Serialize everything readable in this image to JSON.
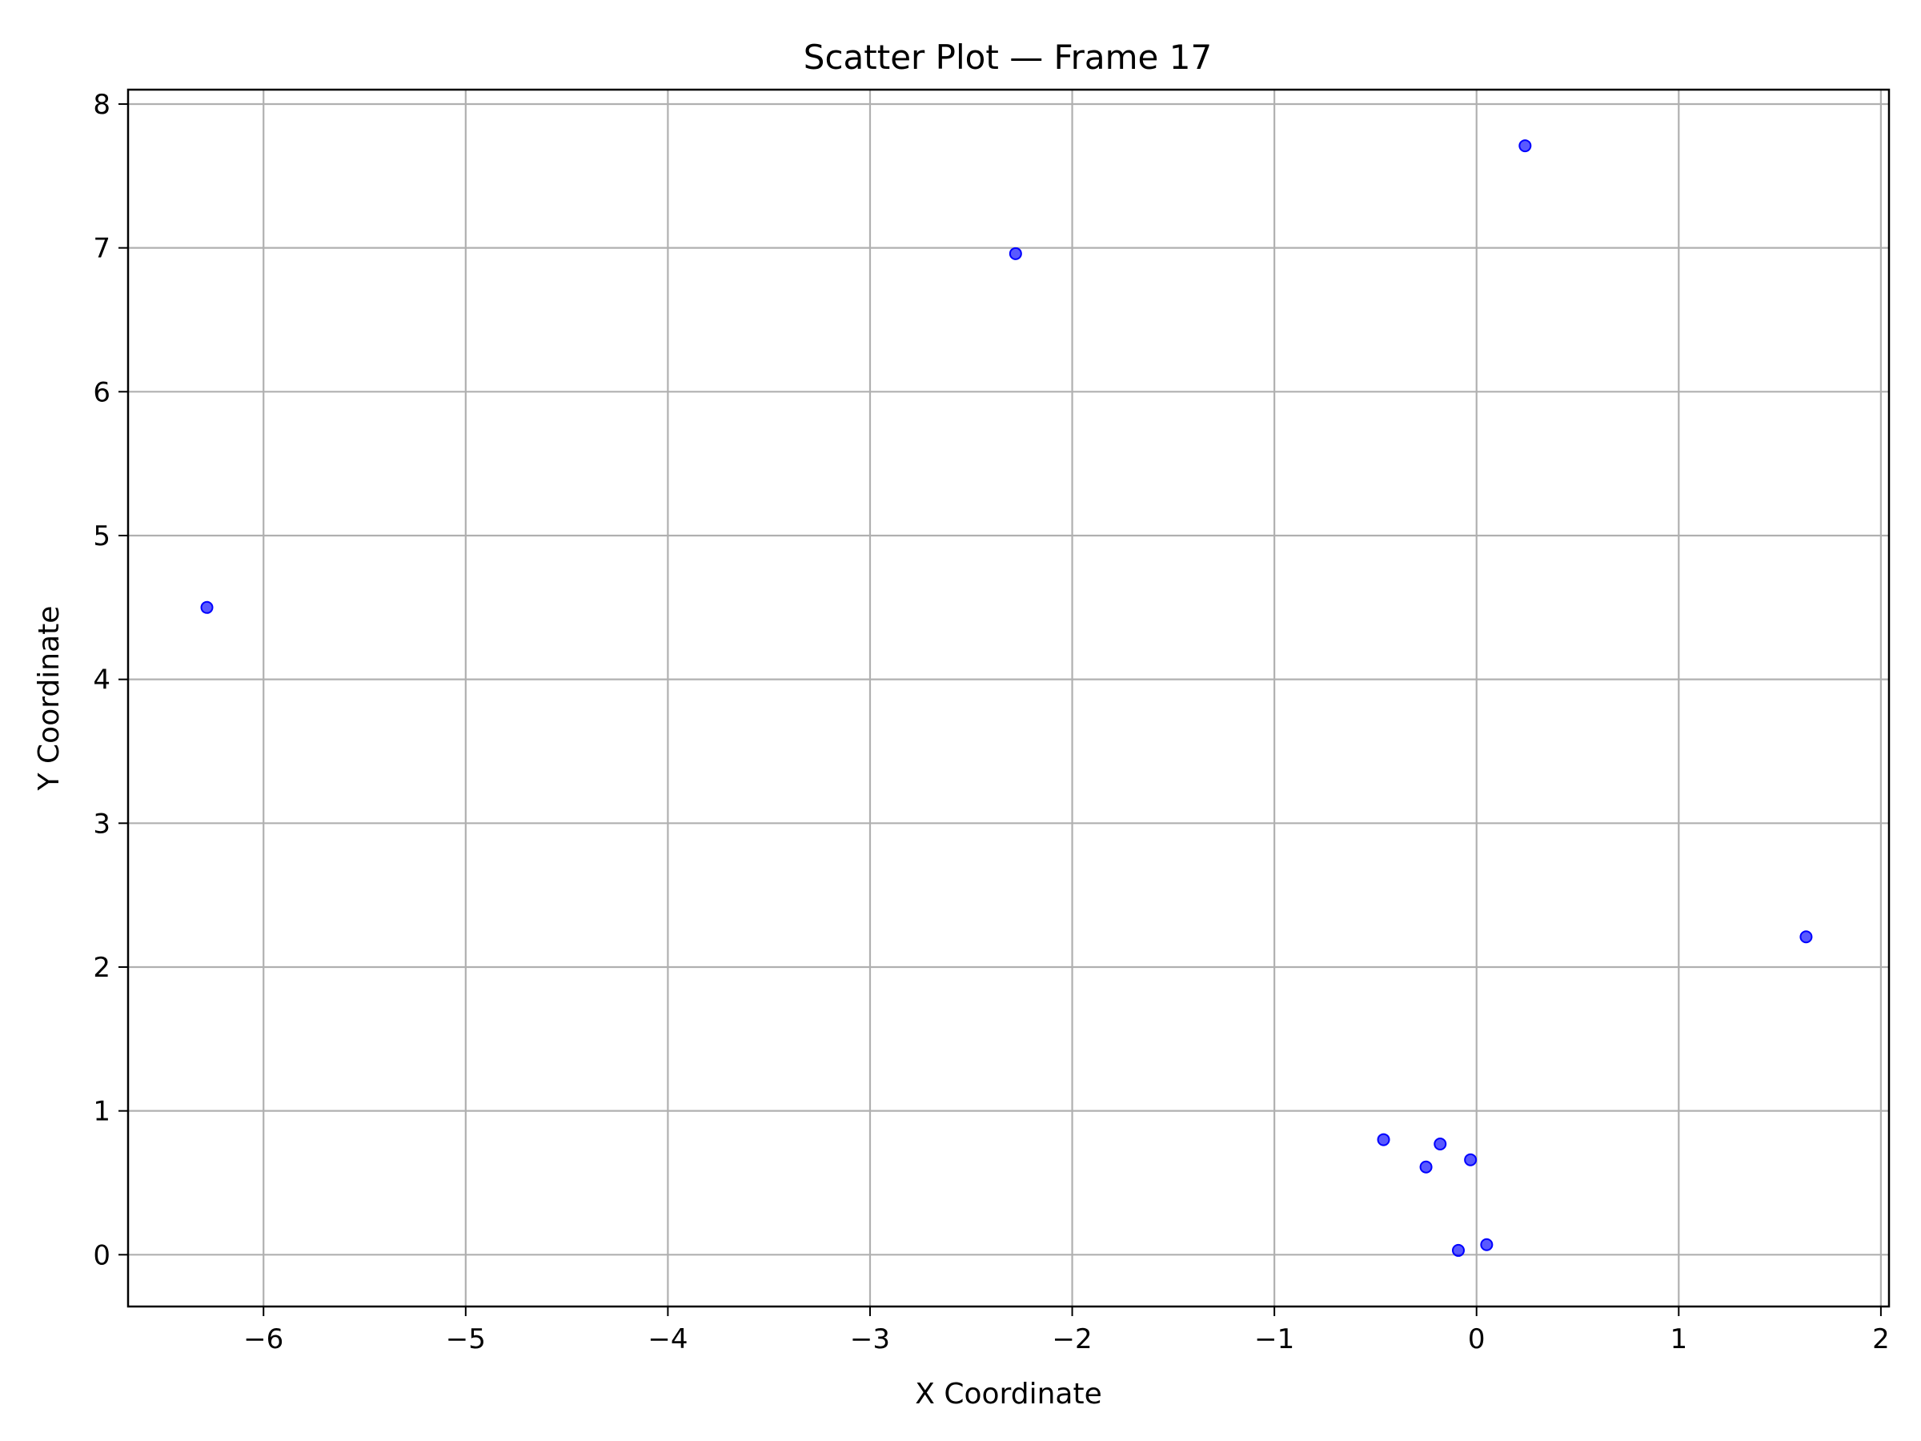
{
  "chart_data": {
    "type": "scatter",
    "title": "Scatter Plot — Frame 17",
    "xlabel": "X Coordinate",
    "ylabel": "Y Coordinate",
    "xlim": [
      -6.67,
      2.04
    ],
    "ylim": [
      -0.36,
      8.1
    ],
    "xticks": [
      -6,
      -5,
      -4,
      -3,
      -2,
      -1,
      0,
      1,
      2
    ],
    "xtick_labels": [
      "−6",
      "−5",
      "−4",
      "−3",
      "−2",
      "−1",
      "0",
      "1",
      "2"
    ],
    "yticks": [
      0,
      1,
      2,
      3,
      4,
      5,
      6,
      7,
      8
    ],
    "ytick_labels": [
      "0",
      "1",
      "2",
      "3",
      "4",
      "5",
      "6",
      "7",
      "8"
    ],
    "grid": true,
    "colors": {
      "points": "#0000ff",
      "grid": "#b0b0b0",
      "axes": "#000000"
    },
    "points": [
      {
        "x": -6.28,
        "y": 4.5
      },
      {
        "x": -2.28,
        "y": 6.96
      },
      {
        "x": 0.24,
        "y": 7.71
      },
      {
        "x": 1.63,
        "y": 2.21
      },
      {
        "x": -0.46,
        "y": 0.8
      },
      {
        "x": -0.18,
        "y": 0.77
      },
      {
        "x": -0.25,
        "y": 0.61
      },
      {
        "x": -0.03,
        "y": 0.66
      },
      {
        "x": -0.09,
        "y": 0.03
      },
      {
        "x": 0.05,
        "y": 0.07
      }
    ]
  }
}
